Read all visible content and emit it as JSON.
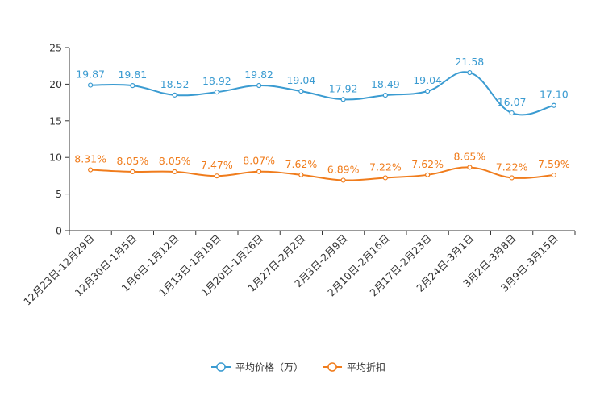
{
  "chart_data": {
    "type": "line",
    "categories": [
      "12月23日-12月29日",
      "12月30日-1月5日",
      "1月6日-1月12日",
      "1月13日-1月19日",
      "1月20日-1月26日",
      "1月27日-2月2日",
      "2月3日-2月9日",
      "2月10日-2月16日",
      "2月17日-2月23日",
      "2月24日-3月1日",
      "3月2日-3月8日",
      "3月9日-3月15日"
    ],
    "series": [
      {
        "name": "平均价格（万）",
        "color": "#3a9bd1",
        "values": [
          19.87,
          19.81,
          18.52,
          18.92,
          19.82,
          19.04,
          17.92,
          18.49,
          19.04,
          21.58,
          16.07,
          17.1
        ],
        "labels": [
          "19.87",
          "19.81",
          "18.52",
          "18.92",
          "19.82",
          "19.04",
          "17.92",
          "18.49",
          "19.04",
          "21.58",
          "16.07",
          "17.10"
        ]
      },
      {
        "name": "平均折扣",
        "color": "#f07c1c",
        "values": [
          8.31,
          8.05,
          8.05,
          7.47,
          8.07,
          7.62,
          6.89,
          7.22,
          7.62,
          8.65,
          7.22,
          7.59
        ],
        "labels": [
          "8.31%",
          "8.05%",
          "8.05%",
          "7.47%",
          "8.07%",
          "7.62%",
          "6.89%",
          "7.22%",
          "7.62%",
          "8.65%",
          "7.22%",
          "7.59%"
        ]
      }
    ],
    "yticks": [
      "0",
      "5",
      "10",
      "15",
      "20",
      "25"
    ],
    "ylim": [
      0,
      25
    ],
    "legend_position": "bottom-center",
    "grid": false
  }
}
